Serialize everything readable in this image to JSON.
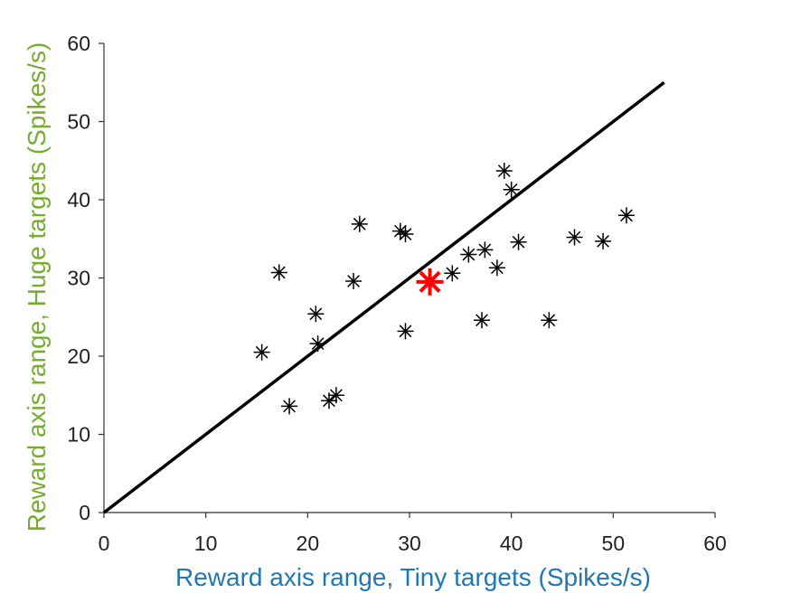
{
  "chart_data": {
    "type": "scatter",
    "xlabel": "Reward axis range, Tiny targets (Spikes/s)",
    "ylabel": "Reward axis range, Huge targets (Spikes/s)",
    "xlim": [
      0,
      60
    ],
    "ylim": [
      0,
      60
    ],
    "xticks": [
      "0",
      "10",
      "20",
      "30",
      "40",
      "50",
      "60"
    ],
    "yticks": [
      "0",
      "10",
      "20",
      "30",
      "40",
      "50",
      "60"
    ],
    "grid": false,
    "legend": "none",
    "reference_line": {
      "x": [
        0,
        55
      ],
      "y": [
        0,
        55
      ],
      "color": "#000000"
    },
    "series": [
      {
        "marker": "asterisk",
        "color": "#000000",
        "points": [
          [
            15.5,
            20.5
          ],
          [
            17.2,
            30.7
          ],
          [
            18.2,
            13.6
          ],
          [
            20.8,
            25.4
          ],
          [
            21.0,
            21.6
          ],
          [
            22.1,
            14.3
          ],
          [
            22.8,
            15.0
          ],
          [
            24.5,
            29.6
          ],
          [
            25.1,
            36.9
          ],
          [
            29.1,
            36.0
          ],
          [
            29.6,
            35.6
          ],
          [
            29.6,
            23.2
          ],
          [
            34.2,
            30.6
          ],
          [
            35.8,
            33.0
          ],
          [
            37.1,
            24.6
          ],
          [
            37.4,
            33.6
          ],
          [
            38.6,
            31.3
          ],
          [
            39.3,
            43.7
          ],
          [
            40.0,
            41.3
          ],
          [
            40.7,
            34.6
          ],
          [
            43.7,
            24.6
          ],
          [
            46.2,
            35.2
          ],
          [
            49.0,
            34.7
          ],
          [
            51.3,
            38.0
          ]
        ]
      },
      {
        "marker": "asterisk",
        "color": "#ff0000",
        "points": [
          [
            32.0,
            29.5
          ]
        ]
      }
    ]
  },
  "colors": {
    "xlabel": "#1f77b4",
    "ylabel": "#77ac30",
    "axis": "#333333"
  }
}
